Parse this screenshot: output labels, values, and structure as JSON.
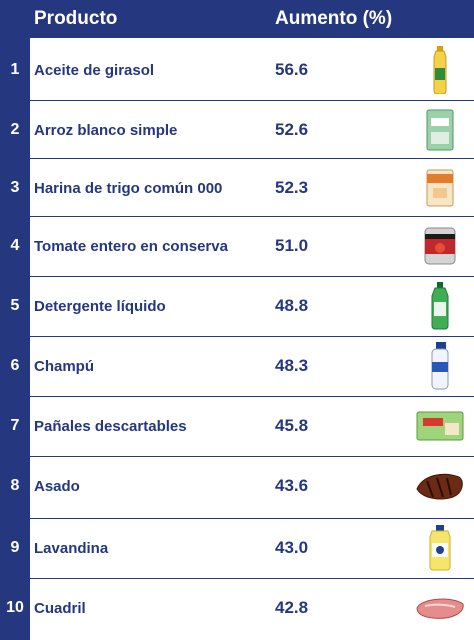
{
  "header": {
    "product": "Producto",
    "increase": "Aumento (%)"
  },
  "rows": [
    {
      "rank": "1",
      "name": "Aceite de girasol",
      "value": "56.6",
      "icon": "oil-bottle-icon"
    },
    {
      "rank": "2",
      "name": "Arroz blanco simple",
      "value": "52.6",
      "icon": "rice-bag-icon"
    },
    {
      "rank": "3",
      "name": "Harina de trigo común 000",
      "value": "52.3",
      "icon": "flour-bag-icon"
    },
    {
      "rank": "4",
      "name": "Tomate entero en conserva",
      "value": "51.0",
      "icon": "tomato-can-icon"
    },
    {
      "rank": "5",
      "name": "Detergente líquido",
      "value": "48.8",
      "icon": "detergent-bottle-icon"
    },
    {
      "rank": "6",
      "name": "Champú",
      "value": "48.3",
      "icon": "shampoo-bottle-icon"
    },
    {
      "rank": "7",
      "name": "Pañales descartables",
      "value": "45.8",
      "icon": "diapers-pack-icon"
    },
    {
      "rank": "8",
      "name": "Asado",
      "value": "43.6",
      "icon": "ribs-meat-icon"
    },
    {
      "rank": "9",
      "name": "Lavandina",
      "value": "43.0",
      "icon": "bleach-bottle-icon"
    },
    {
      "rank": "10",
      "name": "Cuadril",
      "value": "42.8",
      "icon": "beef-cut-icon"
    }
  ],
  "colors": {
    "primary": "#25387f",
    "background": "#ffffff"
  }
}
